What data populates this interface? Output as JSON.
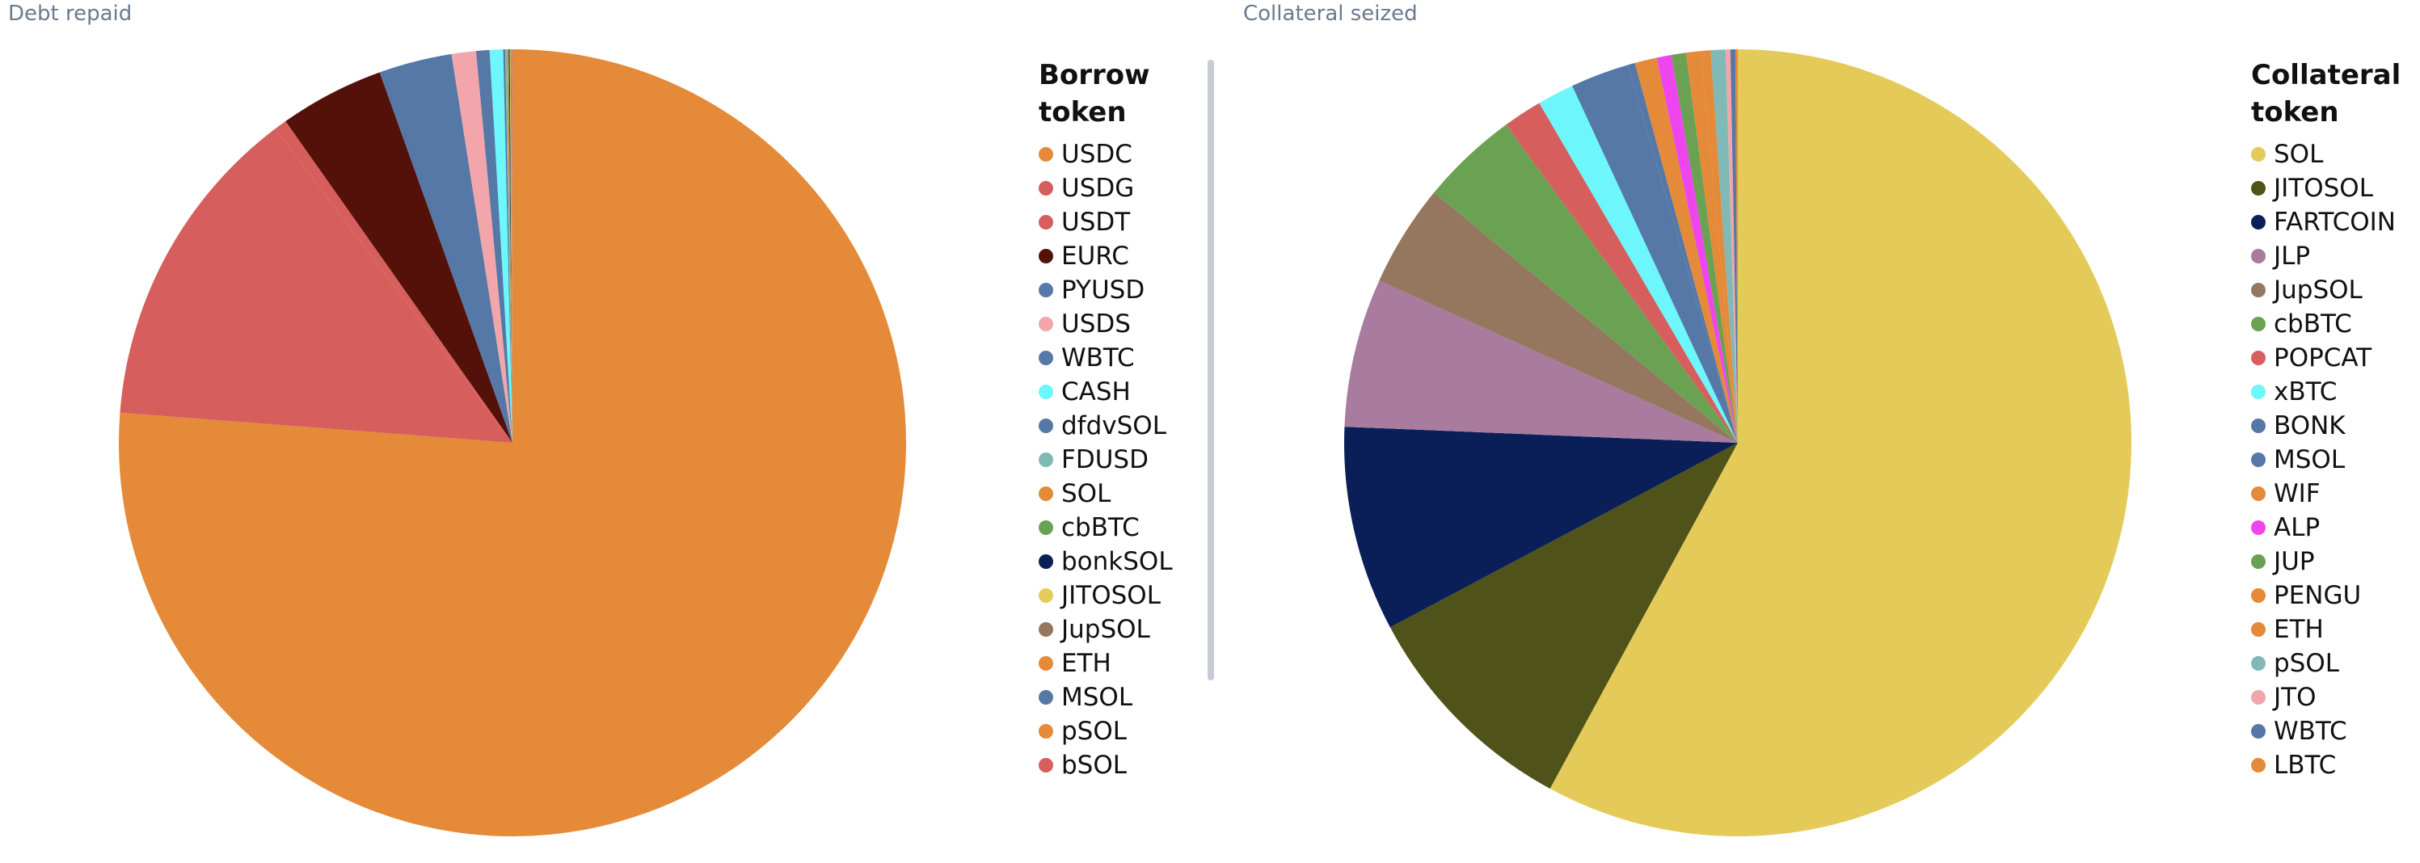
{
  "chart_data": [
    {
      "type": "pie",
      "title": "Debt repaid",
      "legend_title": "Borrow token",
      "categories": [
        "USDC",
        "USDG",
        "USDT",
        "EURC",
        "PYUSD",
        "USDS",
        "WBTC",
        "CASH",
        "dfdvSOL",
        "FDUSD",
        "SOL",
        "cbBTC",
        "bonkSOL",
        "JITOSOL",
        "JupSOL",
        "ETH",
        "MSOL",
        "pSOL",
        "bSOL"
      ],
      "values": [
        76.2,
        13.5,
        0.5,
        4.3,
        3.0,
        1.0,
        0.55,
        0.55,
        0.08,
        0.06,
        0.05,
        0.04,
        0.035,
        0.03,
        0.025,
        0.02,
        0.015,
        0.01,
        0.01
      ],
      "colors": [
        "#e48a39",
        "#d65f5d",
        "#d65f5d",
        "#541109",
        "#5578a6",
        "#f2a5ab",
        "#5578a6",
        "#6df6fb",
        "#5578a6",
        "#80b9b5",
        "#e48a39",
        "#6aa153",
        "#0a1f57",
        "#e4cb59",
        "#957760",
        "#e48a39",
        "#5578a6",
        "#e48a39",
        "#d65f5d"
      ]
    },
    {
      "type": "pie",
      "title": "Collateral seized",
      "legend_title": "Collateral token",
      "categories": [
        "SOL",
        "JITOSOL",
        "FARTCOIN",
        "JLP",
        "JupSOL",
        "cbBTC",
        "POPCAT",
        "xBTC",
        "BONK",
        "MSOL",
        "WIF",
        "ALP",
        "JUP",
        "PENGU",
        "ETH",
        "pSOL",
        "JTO",
        "WBTC",
        "LBTC"
      ],
      "values": [
        57.8,
        9.3,
        8.4,
        6.1,
        4.2,
        4.0,
        1.6,
        1.5,
        2.4,
        0.3,
        0.9,
        0.6,
        0.6,
        0.6,
        0.4,
        0.6,
        0.2,
        0.2,
        0.1
      ],
      "colors": [
        "#e4cb59",
        "#4f5219",
        "#0a1f57",
        "#a97b9f",
        "#957760",
        "#6aa153",
        "#d65f5d",
        "#6df6fb",
        "#5578a6",
        "#5578a6",
        "#e48a39",
        "#ef45ef",
        "#6aa153",
        "#e48a39",
        "#e48a39",
        "#80b9b5",
        "#f2a5ab",
        "#5578a6",
        "#e48a39"
      ]
    }
  ]
}
